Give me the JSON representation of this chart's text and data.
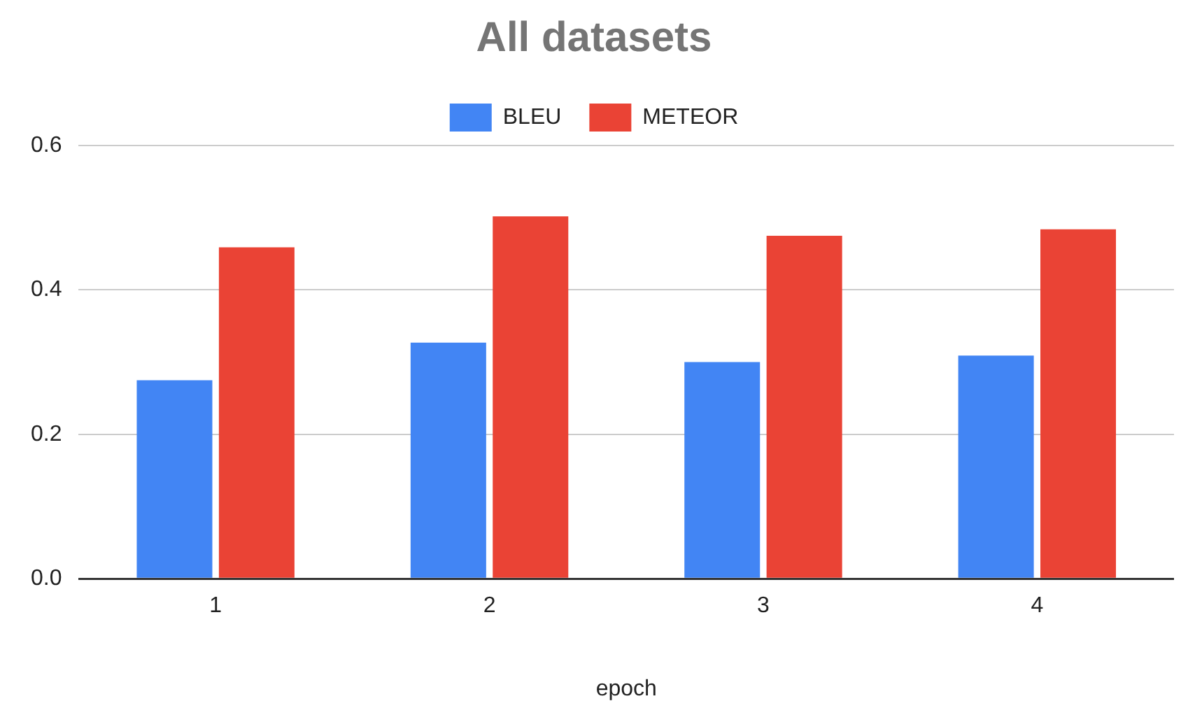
{
  "chart_data": {
    "type": "bar",
    "title": "All datasets",
    "xlabel": "epoch",
    "categories": [
      "1",
      "2",
      "3",
      "4"
    ],
    "series": [
      {
        "name": "BLEU",
        "color": "#4285f4",
        "values": [
          0.275,
          0.327,
          0.3,
          0.309
        ]
      },
      {
        "name": "METEOR",
        "color": "#ea4335",
        "values": [
          0.459,
          0.502,
          0.475,
          0.484
        ]
      }
    ],
    "ylim": [
      0,
      0.6
    ],
    "yticks": [
      {
        "value": 0,
        "label": "0.0"
      },
      {
        "value": 0.2,
        "label": "0.2"
      },
      {
        "value": 0.4,
        "label": "0.4"
      },
      {
        "value": 0.6,
        "label": "0.6"
      }
    ],
    "grid": "y",
    "legend": "top"
  }
}
